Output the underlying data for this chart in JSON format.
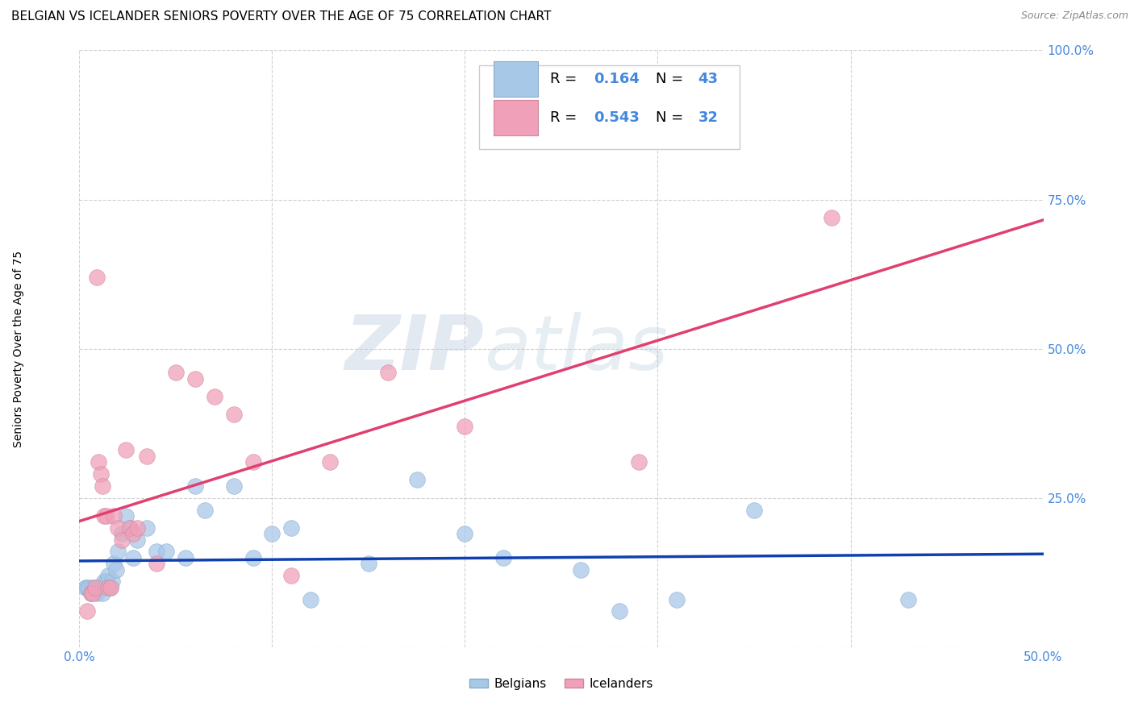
{
  "title": "BELGIAN VS ICELANDER SENIORS POVERTY OVER THE AGE OF 75 CORRELATION CHART",
  "source": "Source: ZipAtlas.com",
  "ylabel": "Seniors Poverty Over the Age of 75",
  "watermark": "ZIPatlas",
  "belgian_color": "#a8c8e8",
  "icelander_color": "#f0a0b8",
  "belgian_line_color": "#1040b0",
  "icelander_line_color": "#e04070",
  "belgian_R": 0.164,
  "belgian_N": 43,
  "icelander_R": 0.543,
  "icelander_N": 32,
  "xlim": [
    0.0,
    0.5
  ],
  "ylim": [
    0.0,
    1.0
  ],
  "belgians_x": [
    0.003,
    0.004,
    0.005,
    0.006,
    0.007,
    0.008,
    0.009,
    0.01,
    0.011,
    0.012,
    0.013,
    0.014,
    0.015,
    0.016,
    0.017,
    0.018,
    0.019,
    0.02,
    0.022,
    0.024,
    0.026,
    0.028,
    0.03,
    0.035,
    0.04,
    0.045,
    0.055,
    0.06,
    0.065,
    0.08,
    0.09,
    0.1,
    0.11,
    0.12,
    0.15,
    0.175,
    0.2,
    0.22,
    0.26,
    0.28,
    0.31,
    0.35,
    0.43
  ],
  "belgians_y": [
    0.1,
    0.1,
    0.1,
    0.09,
    0.1,
    0.1,
    0.09,
    0.1,
    0.1,
    0.09,
    0.11,
    0.11,
    0.12,
    0.1,
    0.11,
    0.14,
    0.13,
    0.16,
    0.19,
    0.22,
    0.2,
    0.15,
    0.18,
    0.2,
    0.16,
    0.16,
    0.15,
    0.27,
    0.23,
    0.27,
    0.15,
    0.19,
    0.2,
    0.08,
    0.14,
    0.28,
    0.19,
    0.15,
    0.13,
    0.06,
    0.08,
    0.23,
    0.08
  ],
  "icelanders_x": [
    0.004,
    0.006,
    0.007,
    0.008,
    0.009,
    0.01,
    0.011,
    0.012,
    0.013,
    0.014,
    0.015,
    0.016,
    0.018,
    0.02,
    0.022,
    0.024,
    0.026,
    0.028,
    0.03,
    0.035,
    0.04,
    0.05,
    0.06,
    0.07,
    0.08,
    0.09,
    0.11,
    0.13,
    0.16,
    0.2,
    0.29,
    0.39
  ],
  "icelanders_y": [
    0.06,
    0.09,
    0.09,
    0.1,
    0.62,
    0.31,
    0.29,
    0.27,
    0.22,
    0.22,
    0.1,
    0.1,
    0.22,
    0.2,
    0.18,
    0.33,
    0.2,
    0.19,
    0.2,
    0.32,
    0.14,
    0.46,
    0.45,
    0.42,
    0.39,
    0.31,
    0.12,
    0.31,
    0.46,
    0.37,
    0.31,
    0.72
  ],
  "title_fontsize": 11,
  "axis_label_fontsize": 10,
  "tick_fontsize": 11,
  "legend_fontsize": 13
}
